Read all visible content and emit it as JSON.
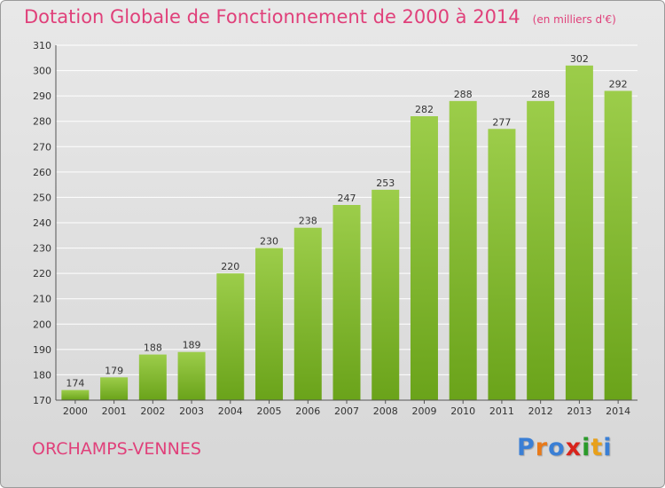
{
  "chart_data": {
    "type": "bar",
    "title": "Dotation Globale de Fonctionnement de 2000 à 2014",
    "unit_note": "(en milliers d'€)",
    "categories": [
      "2000",
      "2001",
      "2002",
      "2003",
      "2004",
      "2005",
      "2006",
      "2007",
      "2008",
      "2009",
      "2010",
      "2011",
      "2012",
      "2013",
      "2014"
    ],
    "values": [
      174,
      179,
      188,
      189,
      220,
      230,
      238,
      247,
      253,
      282,
      288,
      277,
      288,
      302,
      292
    ],
    "ylim": [
      170,
      310
    ],
    "yticks": [
      170,
      180,
      190,
      200,
      210,
      220,
      230,
      240,
      250,
      260,
      270,
      280,
      290,
      300,
      310
    ],
    "xlabel": "",
    "ylabel": "",
    "grid": true,
    "colors": {
      "bar_light": "#9ccd4a",
      "bar_dark": "#6aa31a",
      "grid": "#ffffff",
      "title": "#e0407a"
    }
  },
  "footer": {
    "commune": "ORCHAMPS-VENNES",
    "logo_letters": [
      "P",
      "r",
      "o",
      "x",
      "i",
      "t",
      "i"
    ],
    "logo_colors": [
      "#3a7fd5",
      "#e87a1a",
      "#3a7fd5",
      "#d8241c",
      "#2a9a2a",
      "#e8a01a",
      "#3a7fd5"
    ]
  }
}
